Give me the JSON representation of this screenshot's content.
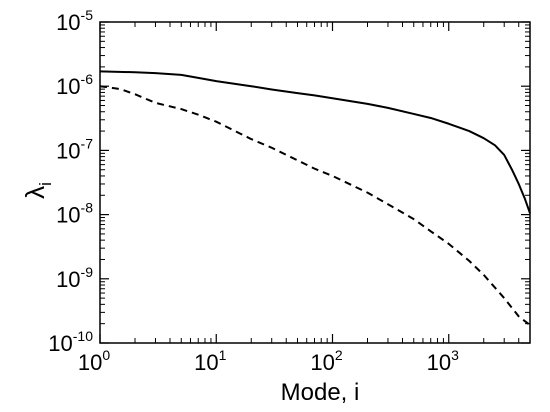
{
  "chart_data": {
    "type": "line",
    "title": "",
    "xlabel": "Mode, i",
    "ylabel": "λ",
    "ylabel_sub": "i",
    "xscale": "log",
    "yscale": "log",
    "xlim": [
      1,
      5000
    ],
    "ylim": [
      1e-10,
      1e-05
    ],
    "grid": false,
    "legend": "none",
    "x_ticks": [
      {
        "value": 1,
        "base": "10",
        "exp": "0"
      },
      {
        "value": 10,
        "base": "10",
        "exp": "1"
      },
      {
        "value": 100,
        "base": "10",
        "exp": "2"
      },
      {
        "value": 1000,
        "base": "10",
        "exp": "3"
      }
    ],
    "y_ticks": [
      {
        "value": 1e-10,
        "base": "10",
        "exp": "-10"
      },
      {
        "value": 1e-09,
        "base": "10",
        "exp": "-9"
      },
      {
        "value": 1e-08,
        "base": "10",
        "exp": "-8"
      },
      {
        "value": 1e-07,
        "base": "10",
        "exp": "-7"
      },
      {
        "value": 1e-06,
        "base": "10",
        "exp": "-6"
      },
      {
        "value": 1e-05,
        "base": "10",
        "exp": "-5"
      }
    ],
    "series": [
      {
        "style": "solid",
        "color": "#000000",
        "x": [
          1,
          2,
          3,
          5,
          7,
          10,
          20,
          30,
          50,
          70,
          100,
          200,
          300,
          500,
          700,
          1000,
          1500,
          2000,
          2500,
          3000,
          3500,
          4000,
          4500,
          5000
        ],
        "y": [
          1.7e-06,
          1.65e-06,
          1.6e-06,
          1.5e-06,
          1.35e-06,
          1.2e-06,
          1e-06,
          8.9e-07,
          7.8e-07,
          7.2e-07,
          6.5e-07,
          5.3e-07,
          4.6e-07,
          3.7e-07,
          3.2e-07,
          2.6e-07,
          2e-07,
          1.55e-07,
          1.2e-07,
          8.5e-08,
          5e-08,
          3e-08,
          1.8e-08,
          1.05e-08
        ]
      },
      {
        "style": "dashed",
        "color": "#000000",
        "x": [
          1,
          1.5,
          2,
          3,
          5,
          7,
          10,
          20,
          30,
          50,
          70,
          100,
          200,
          300,
          500,
          700,
          1000,
          1500,
          2000,
          3000,
          4000,
          5000
        ],
        "y": [
          1e-06,
          9e-07,
          7.5e-07,
          5.5e-07,
          4.4e-07,
          3.6e-07,
          2.8e-07,
          1.5e-07,
          1.1e-07,
          7e-08,
          5.2e-08,
          4e-08,
          2.2e-08,
          1.45e-08,
          8.5e-09,
          5.5e-09,
          3.5e-09,
          1.9e-09,
          1.15e-09,
          5e-10,
          2.6e-10,
          1.9e-10
        ]
      }
    ]
  }
}
